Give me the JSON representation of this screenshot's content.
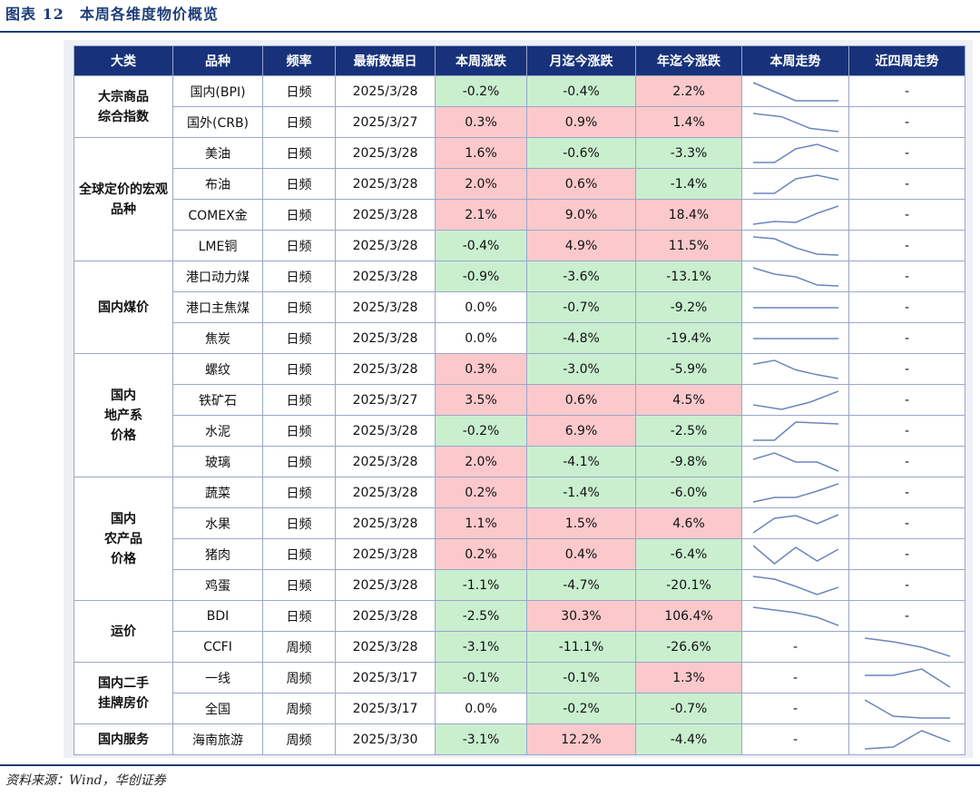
{
  "figure_title": "图表 12　本周各维度物价概览",
  "source_note": "资料来源：Wind，华创证券",
  "colors": {
    "header_bg": "#17327a",
    "up": "#fbc9cc",
    "down": "#c9efcf",
    "spark_line": "#6a85bd"
  },
  "table": {
    "headers": [
      "大类",
      "品种",
      "频率",
      "最新数据日",
      "本周涨跌",
      "月迄今涨跌",
      "年迄今涨跌",
      "本周走势",
      "近四周走势"
    ],
    "groups": [
      {
        "name": "大宗商品综合指数",
        "rows": [
          {
            "item": "国内(BPI)",
            "freq": "日频",
            "date": "2025/3/28",
            "week": "-0.2%",
            "mtd": "-0.4%",
            "ytd": "2.2%",
            "week_trend": [
              3.0,
              2.0,
              1.0,
              1.0,
              1.0
            ],
            "four_week_trend": null
          },
          {
            "item": "国外(CRB)",
            "freq": "日频",
            "date": "2025/3/27",
            "week": "0.3%",
            "mtd": "0.9%",
            "ytd": "1.4%",
            "week_trend": [
              3.0,
              2.6,
              1.2,
              0.8
            ],
            "four_week_trend": null
          }
        ]
      },
      {
        "name": "全球定价的宏观品种",
        "rows": [
          {
            "item": "美油",
            "freq": "日频",
            "date": "2025/3/28",
            "week": "1.6%",
            "mtd": "-0.6%",
            "ytd": "-3.3%",
            "week_trend": [
              1.0,
              1.0,
              2.5,
              3.0,
              2.2
            ],
            "four_week_trend": null
          },
          {
            "item": "布油",
            "freq": "日频",
            "date": "2025/3/28",
            "week": "2.0%",
            "mtd": "0.6%",
            "ytd": "-1.4%",
            "week_trend": [
              1.0,
              1.0,
              2.6,
              3.0,
              2.5
            ],
            "four_week_trend": null
          },
          {
            "item": "COMEX金",
            "freq": "日频",
            "date": "2025/3/28",
            "week": "2.1%",
            "mtd": "9.0%",
            "ytd": "18.4%",
            "week_trend": [
              1.0,
              1.3,
              1.2,
              2.2,
              3.0
            ],
            "four_week_trend": null
          },
          {
            "item": "LME铜",
            "freq": "日频",
            "date": "2025/3/28",
            "week": "-0.4%",
            "mtd": "4.9%",
            "ytd": "11.5%",
            "week_trend": [
              3.0,
              2.8,
              1.8,
              1.1,
              1.0
            ],
            "four_week_trend": null
          }
        ]
      },
      {
        "name": "国内煤价",
        "rows": [
          {
            "item": "港口动力煤",
            "freq": "日频",
            "date": "2025/3/28",
            "week": "-0.9%",
            "mtd": "-3.6%",
            "ytd": "-13.1%",
            "week_trend": [
              3.0,
              2.3,
              2.0,
              1.1,
              1.0
            ],
            "four_week_trend": null
          },
          {
            "item": "港口主焦煤",
            "freq": "日频",
            "date": "2025/3/28",
            "week": "0.0%",
            "mtd": "-0.7%",
            "ytd": "-9.2%",
            "week_trend": [
              2.0,
              2.0,
              2.0,
              2.0,
              2.0
            ],
            "four_week_trend": null
          },
          {
            "item": "焦炭",
            "freq": "日频",
            "date": "2025/3/28",
            "week": "0.0%",
            "mtd": "-4.8%",
            "ytd": "-19.4%",
            "week_trend": [
              2.0,
              2.0,
              2.0,
              2.0,
              2.0
            ],
            "four_week_trend": null
          }
        ]
      },
      {
        "name": "国内地产系价格",
        "rows": [
          {
            "item": "螺纹",
            "freq": "日频",
            "date": "2025/3/28",
            "week": "0.3%",
            "mtd": "-3.0%",
            "ytd": "-5.9%",
            "week_trend": [
              2.6,
              3.0,
              2.0,
              1.5,
              1.1
            ],
            "four_week_trend": null
          },
          {
            "item": "铁矿石",
            "freq": "日频",
            "date": "2025/3/27",
            "week": "3.5%",
            "mtd": "0.6%",
            "ytd": "4.5%",
            "week_trend": [
              1.5,
              1.0,
              1.8,
              3.0
            ],
            "four_week_trend": null
          },
          {
            "item": "水泥",
            "freq": "日频",
            "date": "2025/3/28",
            "week": "-0.2%",
            "mtd": "6.9%",
            "ytd": "-2.5%",
            "week_trend": [
              1.0,
              1.0,
              3.0,
              2.9,
              2.8
            ],
            "four_week_trend": null
          },
          {
            "item": "玻璃",
            "freq": "日频",
            "date": "2025/3/28",
            "week": "2.0%",
            "mtd": "-4.1%",
            "ytd": "-9.8%",
            "week_trend": [
              2.3,
              3.0,
              2.0,
              2.0,
              1.0
            ],
            "four_week_trend": null
          }
        ]
      },
      {
        "name": "国内农产品价格",
        "rows": [
          {
            "item": "蔬菜",
            "freq": "日频",
            "date": "2025/3/28",
            "week": "0.2%",
            "mtd": "-1.4%",
            "ytd": "-6.0%",
            "week_trend": [
              1.0,
              1.5,
              1.5,
              2.2,
              3.0
            ],
            "four_week_trend": null
          },
          {
            "item": "水果",
            "freq": "日频",
            "date": "2025/3/28",
            "week": "1.1%",
            "mtd": "1.5%",
            "ytd": "4.6%",
            "week_trend": [
              1.0,
              2.6,
              2.9,
              2.0,
              3.0
            ],
            "four_week_trend": null
          },
          {
            "item": "猪肉",
            "freq": "日频",
            "date": "2025/3/28",
            "week": "0.2%",
            "mtd": "0.4%",
            "ytd": "-6.4%",
            "week_trend": [
              3.0,
              1.0,
              2.8,
              1.3,
              2.6
            ],
            "four_week_trend": null
          },
          {
            "item": "鸡蛋",
            "freq": "日频",
            "date": "2025/3/28",
            "week": "-1.1%",
            "mtd": "-4.7%",
            "ytd": "-20.1%",
            "week_trend": [
              3.0,
              2.7,
              1.9,
              1.0,
              1.8
            ],
            "four_week_trend": null
          }
        ]
      },
      {
        "name": "运价",
        "rows": [
          {
            "item": "BDI",
            "freq": "日频",
            "date": "2025/3/28",
            "week": "-2.5%",
            "mtd": "30.3%",
            "ytd": "106.4%",
            "week_trend": [
              3.0,
              2.7,
              2.4,
              1.9,
              1.0
            ],
            "four_week_trend": null
          },
          {
            "item": "CCFI",
            "freq": "周频",
            "date": "2025/3/28",
            "week": "-3.1%",
            "mtd": "-11.1%",
            "ytd": "-26.6%",
            "week_trend": null,
            "four_week_trend": [
              3.0,
              2.6,
              2.0,
              1.0
            ]
          }
        ]
      },
      {
        "name": "国内二手挂牌房价",
        "rows": [
          {
            "item": "一线",
            "freq": "周频",
            "date": "2025/3/17",
            "week": "-0.1%",
            "mtd": "-0.1%",
            "ytd": "1.3%",
            "week_trend": null,
            "four_week_trend": [
              2.3,
              2.3,
              3.0,
              1.0
            ]
          },
          {
            "item": "全国",
            "freq": "周频",
            "date": "2025/3/17",
            "week": "0.0%",
            "mtd": "-0.2%",
            "ytd": "-0.7%",
            "week_trend": null,
            "four_week_trend": [
              3.0,
              1.2,
              1.0,
              1.0
            ]
          }
        ]
      },
      {
        "name": "国内服务",
        "rows": [
          {
            "item": "海南旅游",
            "freq": "周频",
            "date": "2025/3/30",
            "week": "-3.1%",
            "mtd": "12.2%",
            "ytd": "-4.4%",
            "week_trend": null,
            "four_week_trend": [
              1.0,
              1.2,
              3.0,
              1.8
            ]
          }
        ]
      }
    ]
  }
}
